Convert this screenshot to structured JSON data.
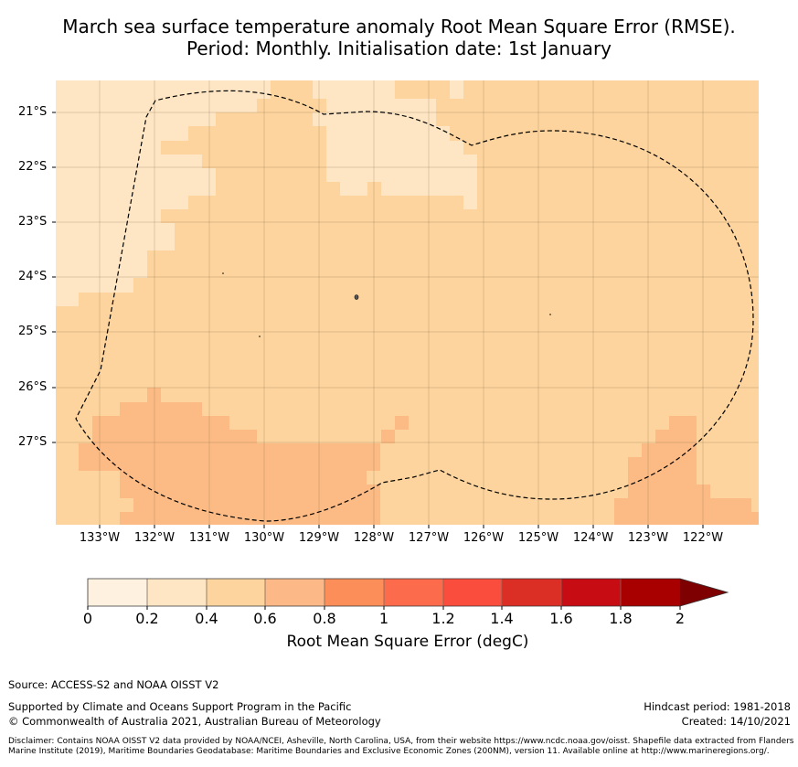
{
  "title": {
    "line1": "March sea surface temperature anomaly Root Mean Square Error (RMSE).",
    "line2": "Period: Monthly. Initialisation date: 1st January"
  },
  "map": {
    "lat_labels": [
      "21°S",
      "22°S",
      "23°S",
      "24°S",
      "25°S",
      "26°S",
      "27°S"
    ],
    "lon_labels": [
      "133°W",
      "132°W",
      "131°W",
      "130°W",
      "129°W",
      "128°W",
      "127°W",
      "126°W",
      "125°W",
      "124°W",
      "123°W",
      "122°W"
    ],
    "zone_boundary": "Exclusive Economic Zone (200NM)",
    "colors": {
      "level_0": "#fff1df",
      "level_1": "#fee6c4",
      "level_2": "#fdd49e",
      "level_3": "#fcbb85"
    }
  },
  "colorbar": {
    "ticks": [
      "0",
      "0.2",
      "0.4",
      "0.6",
      "0.8",
      "1",
      "1.2",
      "1.4",
      "1.6",
      "1.8",
      "2"
    ],
    "colors": [
      "#fff1df",
      "#fee6c4",
      "#fdd49e",
      "#fcb886",
      "#fc8e59",
      "#fd6b4d",
      "#fb4d3e",
      "#db2e24",
      "#c70c14",
      "#a80000"
    ],
    "extend_color": "#7f0000",
    "label": "Root Mean Square Error (degC)"
  },
  "footer": {
    "source": "Source: ACCESS-S2 and NOAA OISST V2",
    "support": "Supported by Climate and Oceans Support Program in the Pacific",
    "copyright": "© Commonwealth of Australia 2021, Australian Bureau of Meteorology",
    "hindcast": "Hindcast period: 1981-2018",
    "created": "Created: 14/10/2021",
    "disclaimer": "Disclaimer: Contains NOAA OISST V2 data provided by NOAA/NCEI, Asheville, North Carolina, USA, from their website https://www.ncdc.noaa.gov/oisst. Shapefile data extracted from Flanders Marine Institute (2019), Maritime Boundaries Geodatabase: Maritime Boundaries and Exclusive Economic Zones (200NM), version 11. Available online at http://www.marineregions.org/."
  }
}
